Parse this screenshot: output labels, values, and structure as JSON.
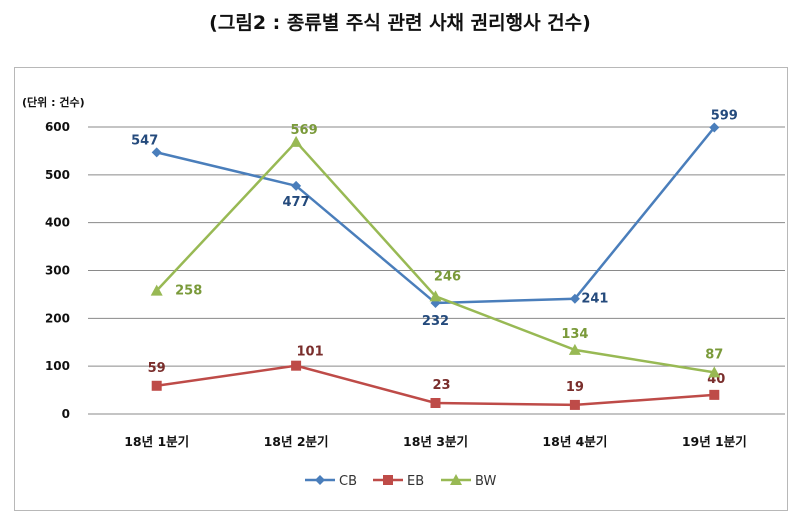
{
  "chart_data": {
    "type": "line",
    "title": "(그림2 : 종류별 주식 관련 사채 권리행사 건수)",
    "unit_label": "(단위 : 건수)",
    "categories": [
      "18년 1분기",
      "18년 2분기",
      "18년 3분기",
      "18년 4분기",
      "19년 1분기"
    ],
    "ylim": [
      0,
      600
    ],
    "yticks": [
      0,
      100,
      200,
      300,
      400,
      500,
      600
    ],
    "grid": true,
    "legend": "bottom",
    "series": [
      {
        "name": "CB",
        "color": "#4a7ebb",
        "marker": "diamond",
        "values": [
          547,
          477,
          232,
          241,
          599
        ]
      },
      {
        "name": "EB",
        "color": "#be4b48",
        "marker": "square",
        "values": [
          59,
          101,
          23,
          19,
          40
        ]
      },
      {
        "name": "BW",
        "color": "#98b954",
        "marker": "triangle",
        "values": [
          258,
          569,
          246,
          134,
          87
        ]
      }
    ]
  }
}
